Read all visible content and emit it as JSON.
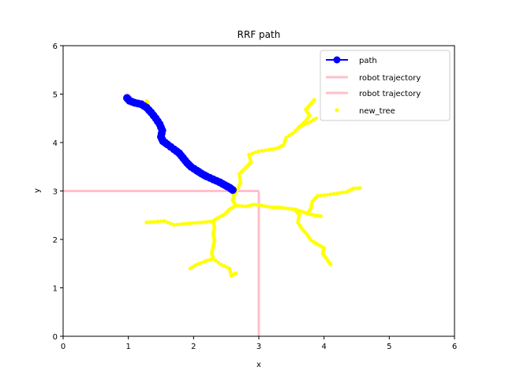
{
  "chart_data": {
    "type": "scatter",
    "title": "RRF path",
    "xlabel": "x",
    "ylabel": "y",
    "xlim": [
      0,
      6
    ],
    "ylim": [
      0,
      6
    ],
    "xticks": [
      "0",
      "1",
      "2",
      "3",
      "4",
      "5",
      "6"
    ],
    "yticks": [
      "0",
      "1",
      "2",
      "3",
      "4",
      "5",
      "6"
    ],
    "grid": false,
    "legend_position": "upper right",
    "legend": [
      {
        "label": "path",
        "kind": "line-marker",
        "color": "#0000ff"
      },
      {
        "label": "robot trajectory",
        "kind": "line",
        "color": "#ffc0cb"
      },
      {
        "label": "robot trajectory",
        "kind": "line",
        "color": "#ffc0cb"
      },
      {
        "label": "new_tree",
        "kind": "marker",
        "color": "#ffff00"
      }
    ],
    "series": [
      {
        "name": "path",
        "type": "line",
        "color": "#0000ff",
        "points": [
          [
            0.98,
            4.92
          ],
          [
            1.02,
            4.86
          ],
          [
            1.1,
            4.82
          ],
          [
            1.2,
            4.79
          ],
          [
            1.28,
            4.72
          ],
          [
            1.35,
            4.62
          ],
          [
            1.42,
            4.5
          ],
          [
            1.48,
            4.38
          ],
          [
            1.52,
            4.25
          ],
          [
            1.5,
            4.12
          ],
          [
            1.53,
            4.03
          ],
          [
            1.6,
            3.96
          ],
          [
            1.7,
            3.86
          ],
          [
            1.78,
            3.78
          ],
          [
            1.84,
            3.68
          ],
          [
            1.9,
            3.58
          ],
          [
            1.96,
            3.5
          ],
          [
            2.05,
            3.42
          ],
          [
            2.12,
            3.36
          ],
          [
            2.2,
            3.3
          ],
          [
            2.3,
            3.24
          ],
          [
            2.4,
            3.18
          ],
          [
            2.48,
            3.12
          ],
          [
            2.55,
            3.07
          ],
          [
            2.6,
            3.02
          ]
        ]
      },
      {
        "name": "robot trajectory",
        "type": "line",
        "color": "#ffc0cb",
        "points": [
          [
            0,
            3
          ],
          [
            3,
            3
          ]
        ]
      },
      {
        "name": "robot trajectory",
        "type": "line",
        "color": "#ffc0cb",
        "points": [
          [
            3,
            3
          ],
          [
            3,
            0
          ]
        ]
      },
      {
        "name": "new_tree",
        "type": "scatter",
        "color": "#ffff00",
        "branches": [
          [
            [
              2.6,
              3.02
            ],
            [
              2.62,
              2.9
            ],
            [
              2.6,
              2.8
            ],
            [
              2.65,
              2.7
            ],
            [
              2.8,
              2.68
            ],
            [
              2.92,
              2.72
            ],
            [
              3.05,
              2.7
            ],
            [
              3.2,
              2.66
            ],
            [
              3.3,
              2.66
            ],
            [
              3.42,
              2.64
            ],
            [
              3.55,
              2.62
            ],
            [
              3.65,
              2.58
            ],
            [
              3.75,
              2.53
            ],
            [
              3.85,
              2.5
            ],
            [
              3.95,
              2.48
            ]
          ],
          [
            [
              3.55,
              2.62
            ],
            [
              3.62,
              2.5
            ],
            [
              3.6,
              2.35
            ],
            [
              3.66,
              2.22
            ],
            [
              3.74,
              2.1
            ],
            [
              3.8,
              1.98
            ],
            [
              3.9,
              1.9
            ],
            [
              4.0,
              1.82
            ],
            [
              3.98,
              1.7
            ],
            [
              4.05,
              1.58
            ],
            [
              4.1,
              1.48
            ]
          ],
          [
            [
              3.75,
              2.53
            ],
            [
              3.8,
              2.65
            ],
            [
              3.82,
              2.78
            ],
            [
              3.9,
              2.9
            ],
            [
              4.05,
              2.92
            ],
            [
              4.2,
              2.95
            ],
            [
              4.35,
              2.98
            ],
            [
              4.45,
              3.05
            ],
            [
              4.55,
              3.06
            ]
          ],
          [
            [
              2.65,
              2.7
            ],
            [
              2.55,
              2.62
            ],
            [
              2.48,
              2.52
            ],
            [
              2.38,
              2.45
            ],
            [
              2.3,
              2.38
            ],
            [
              2.15,
              2.35
            ],
            [
              2.0,
              2.34
            ],
            [
              1.85,
              2.32
            ],
            [
              1.7,
              2.3
            ],
            [
              1.55,
              2.38
            ],
            [
              1.4,
              2.36
            ],
            [
              1.28,
              2.35
            ]
          ],
          [
            [
              2.3,
              2.38
            ],
            [
              2.32,
              2.25
            ],
            [
              2.3,
              2.12
            ],
            [
              2.32,
              1.98
            ],
            [
              2.3,
              1.85
            ],
            [
              2.28,
              1.72
            ],
            [
              2.3,
              1.6
            ],
            [
              2.18,
              1.55
            ],
            [
              2.05,
              1.48
            ],
            [
              1.95,
              1.4
            ]
          ],
          [
            [
              2.3,
              1.6
            ],
            [
              2.42,
              1.48
            ],
            [
              2.55,
              1.4
            ],
            [
              2.58,
              1.25
            ],
            [
              2.65,
              1.3
            ]
          ],
          [
            [
              2.62,
              2.9
            ],
            [
              2.68,
              3.05
            ],
            [
              2.72,
              3.18
            ],
            [
              2.7,
              3.35
            ],
            [
              2.8,
              3.48
            ],
            [
              2.88,
              3.6
            ],
            [
              2.85,
              3.75
            ],
            [
              3.0,
              3.82
            ],
            [
              3.15,
              3.85
            ],
            [
              3.28,
              3.88
            ],
            [
              3.38,
              3.95
            ],
            [
              3.42,
              4.1
            ],
            [
              3.55,
              4.22
            ],
            [
              3.62,
              4.32
            ],
            [
              3.7,
              4.42
            ],
            [
              3.78,
              4.55
            ],
            [
              3.72,
              4.68
            ],
            [
              3.8,
              4.8
            ],
            [
              3.85,
              4.88
            ]
          ],
          [
            [
              3.62,
              4.32
            ],
            [
              3.75,
              4.4
            ],
            [
              3.88,
              4.5
            ]
          ],
          [
            [
              1.28,
              4.86
            ],
            [
              1.3,
              4.8
            ]
          ]
        ]
      }
    ]
  }
}
